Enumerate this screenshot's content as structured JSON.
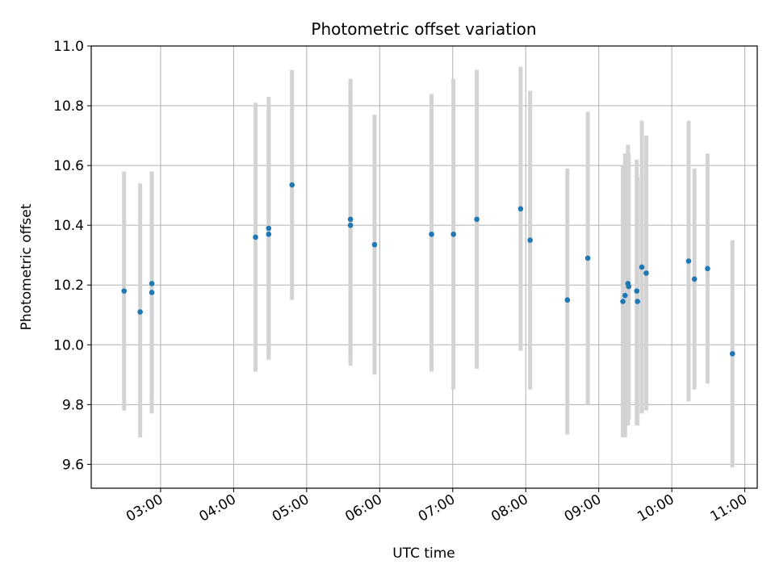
{
  "chart_data": {
    "type": "scatter",
    "title": "Photometric offset variation",
    "xlabel": "UTC time",
    "ylabel": "Photometric offset",
    "xlim_hours": [
      2.05,
      11.17
    ],
    "ylim": [
      9.52,
      11.0
    ],
    "grid": true,
    "x_ticks": [
      {
        "hour": 3,
        "label": "03:00"
      },
      {
        "hour": 4,
        "label": "04:00"
      },
      {
        "hour": 5,
        "label": "05:00"
      },
      {
        "hour": 6,
        "label": "06:00"
      },
      {
        "hour": 7,
        "label": "07:00"
      },
      {
        "hour": 8,
        "label": "08:00"
      },
      {
        "hour": 9,
        "label": "09:00"
      },
      {
        "hour": 10,
        "label": "10:00"
      },
      {
        "hour": 11,
        "label": "11:00"
      }
    ],
    "y_ticks": [
      {
        "value": 9.6,
        "label": "9.6"
      },
      {
        "value": 9.8,
        "label": "9.8"
      },
      {
        "value": 10.0,
        "label": "10.0"
      },
      {
        "value": 10.2,
        "label": "10.2"
      },
      {
        "value": 10.4,
        "label": "10.4"
      },
      {
        "value": 10.6,
        "label": "10.6"
      },
      {
        "value": 10.8,
        "label": "10.8"
      },
      {
        "value": 11.0,
        "label": "11.0"
      }
    ],
    "marker_color": "#1f77b4",
    "errorbar_color": "#d3d3d3",
    "points": [
      {
        "hour": 2.5,
        "y": 10.18,
        "lo": 9.78,
        "hi": 10.58
      },
      {
        "hour": 2.72,
        "y": 10.11,
        "lo": 9.69,
        "hi": 10.54
      },
      {
        "hour": 2.88,
        "y": 10.205,
        "lo": 9.83,
        "hi": 10.58
      },
      {
        "hour": 2.88,
        "y": 10.175,
        "lo": 9.77,
        "hi": 10.58
      },
      {
        "hour": 4.3,
        "y": 10.36,
        "lo": 9.91,
        "hi": 10.81
      },
      {
        "hour": 4.48,
        "y": 10.39,
        "lo": 9.95,
        "hi": 10.83
      },
      {
        "hour": 4.48,
        "y": 10.37,
        "lo": 9.95,
        "hi": 10.79
      },
      {
        "hour": 4.8,
        "y": 10.535,
        "lo": 10.15,
        "hi": 10.92
      },
      {
        "hour": 5.6,
        "y": 10.42,
        "lo": 9.95,
        "hi": 10.89
      },
      {
        "hour": 5.6,
        "y": 10.4,
        "lo": 9.93,
        "hi": 10.87
      },
      {
        "hour": 5.93,
        "y": 10.335,
        "lo": 9.9,
        "hi": 10.77
      },
      {
        "hour": 6.71,
        "y": 10.37,
        "lo": 9.91,
        "hi": 10.84
      },
      {
        "hour": 7.01,
        "y": 10.37,
        "lo": 9.85,
        "hi": 10.89
      },
      {
        "hour": 7.33,
        "y": 10.42,
        "lo": 9.92,
        "hi": 10.92
      },
      {
        "hour": 7.93,
        "y": 10.455,
        "lo": 9.98,
        "hi": 10.93
      },
      {
        "hour": 8.06,
        "y": 10.35,
        "lo": 9.85,
        "hi": 10.85
      },
      {
        "hour": 8.57,
        "y": 10.15,
        "lo": 9.7,
        "hi": 10.59
      },
      {
        "hour": 8.85,
        "y": 10.29,
        "lo": 9.8,
        "hi": 10.78
      },
      {
        "hour": 9.33,
        "y": 10.145,
        "lo": 9.69,
        "hi": 10.6
      },
      {
        "hour": 9.36,
        "y": 10.165,
        "lo": 9.69,
        "hi": 10.64
      },
      {
        "hour": 9.4,
        "y": 10.205,
        "lo": 9.73,
        "hi": 10.67
      },
      {
        "hour": 9.41,
        "y": 10.195,
        "lo": 9.75,
        "hi": 10.64
      },
      {
        "hour": 9.52,
        "y": 10.18,
        "lo": 9.73,
        "hi": 10.62
      },
      {
        "hour": 9.53,
        "y": 10.145,
        "lo": 9.73,
        "hi": 10.56
      },
      {
        "hour": 9.59,
        "y": 10.26,
        "lo": 9.77,
        "hi": 10.75
      },
      {
        "hour": 9.65,
        "y": 10.24,
        "lo": 9.78,
        "hi": 10.7
      },
      {
        "hour": 10.23,
        "y": 10.28,
        "lo": 9.81,
        "hi": 10.75
      },
      {
        "hour": 10.31,
        "y": 10.22,
        "lo": 9.85,
        "hi": 10.59
      },
      {
        "hour": 10.49,
        "y": 10.255,
        "lo": 9.87,
        "hi": 10.64
      },
      {
        "hour": 10.83,
        "y": 9.97,
        "lo": 9.59,
        "hi": 10.35
      }
    ]
  }
}
